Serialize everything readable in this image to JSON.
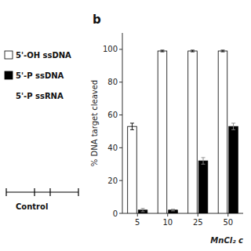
{
  "chart_data": {
    "type": "bar",
    "title": "b",
    "categories": [
      "5",
      "10",
      "25",
      "50"
    ],
    "series": [
      {
        "name": "5'-OH ssDNA",
        "color": "#ffffff",
        "values": [
          53,
          99,
          99,
          99
        ],
        "errors": [
          2,
          0.5,
          0.5,
          0.5
        ]
      },
      {
        "name": "5'-P ssDNA",
        "color": "#000000",
        "values": [
          2,
          2,
          32,
          53
        ],
        "errors": [
          1,
          0.5,
          2,
          2
        ]
      }
    ],
    "x_label": "MnCl₂ c",
    "y_label": "% DNA target cleaved",
    "annotations": [
      "5'-P ssRNA",
      "Control"
    ],
    "ylim": [
      0,
      110
    ],
    "yticks": [
      0,
      20,
      40,
      60,
      80,
      100
    ],
    "grid": false
  }
}
